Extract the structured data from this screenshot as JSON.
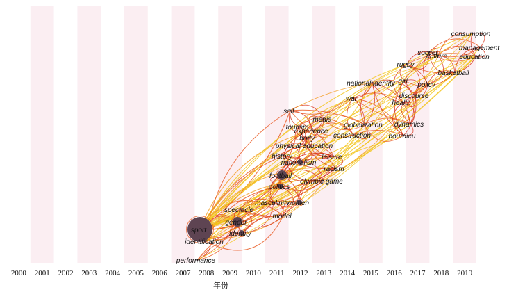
{
  "axis": {
    "title": "年份",
    "years": [
      "2000",
      "2001",
      "2002",
      "2003",
      "2004",
      "2005",
      "2006",
      "2007",
      "2008",
      "2009",
      "2010",
      "2011",
      "2012",
      "2013",
      "2014",
      "2015",
      "2016",
      "2017",
      "2018",
      "2019"
    ]
  },
  "colors": {
    "band": "#fbeef2",
    "node_fill": "#5e4452",
    "link_light": "#f2c419",
    "link_mid": "#f49a1c",
    "link_dark": "#e8541a",
    "link_red": "#d8331a"
  },
  "keywords": [
    {
      "label": "sport",
      "year": 2008,
      "size": 5
    },
    {
      "label": "identification",
      "year": 2008,
      "size": 0
    },
    {
      "label": "performance",
      "year": 2007,
      "size": 0
    },
    {
      "label": "gender",
      "year": 2009,
      "size": 2
    },
    {
      "label": "identity",
      "year": 2009,
      "size": 1
    },
    {
      "label": "spectacle",
      "year": 2009,
      "size": 0
    },
    {
      "label": "model",
      "year": 2010,
      "size": 0
    },
    {
      "label": "masculinity",
      "year": 2010,
      "size": 0
    },
    {
      "label": "women",
      "year": 2012,
      "size": 1
    },
    {
      "label": "politics",
      "year": 2011,
      "size": 1
    },
    {
      "label": "olympic game",
      "year": 2012,
      "size": 0
    },
    {
      "label": "football",
      "year": 2011,
      "size": 2
    },
    {
      "label": "racism",
      "year": 2012,
      "size": 0
    },
    {
      "label": "nationalism",
      "year": 2011,
      "size": 1
    },
    {
      "label": "history",
      "year": 2011,
      "size": 0
    },
    {
      "label": "leisure",
      "year": 2012,
      "size": 0
    },
    {
      "label": "physical education",
      "year": 2011,
      "size": 0
    },
    {
      "label": "body",
      "year": 2012,
      "size": 0
    },
    {
      "label": "experience",
      "year": 2012,
      "size": 0
    },
    {
      "label": "tourism",
      "year": 2011,
      "size": 0
    },
    {
      "label": "media",
      "year": 2012,
      "size": 0
    },
    {
      "label": "self",
      "year": 2011,
      "size": 0
    },
    {
      "label": "construction",
      "year": 2014,
      "size": 0
    },
    {
      "label": "globalization",
      "year": 2014,
      "size": 0
    },
    {
      "label": "war",
      "year": 2014,
      "size": 0
    },
    {
      "label": "national identity",
      "year": 2015,
      "size": 0
    },
    {
      "label": "bourdieu",
      "year": 2016,
      "size": 0
    },
    {
      "label": "dynamics",
      "year": 2016,
      "size": 0
    },
    {
      "label": "health",
      "year": 2016,
      "size": 0
    },
    {
      "label": "discourse",
      "year": 2016,
      "size": 0
    },
    {
      "label": "girl",
      "year": 2016,
      "size": 0
    },
    {
      "label": "policy",
      "year": 2017,
      "size": 0
    },
    {
      "label": "rugby",
      "year": 2016,
      "size": 0
    },
    {
      "label": "basketball",
      "year": 2018,
      "size": 0
    },
    {
      "label": "culture",
      "year": 2017,
      "size": 0
    },
    {
      "label": "soccer",
      "year": 2017,
      "size": 0
    },
    {
      "label": "education",
      "year": 2019,
      "size": 0
    },
    {
      "label": "management",
      "year": 2019,
      "size": 0
    },
    {
      "label": "consumption",
      "year": 2019,
      "size": 0
    }
  ]
}
